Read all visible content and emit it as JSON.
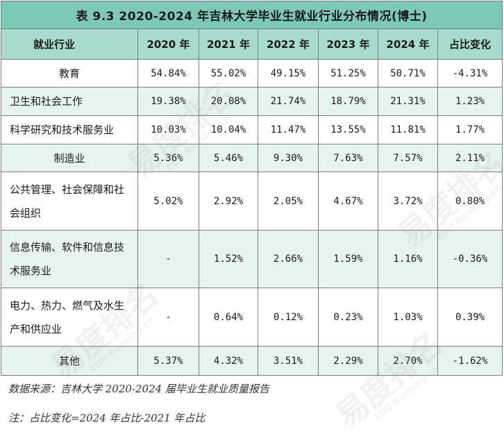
{
  "table": {
    "title": "表 9.3  2020-2024 年吉林大学毕业生就业行业分布情况(博士)",
    "columns": [
      "就业行业",
      "2020 年",
      "2021 年",
      "2022 年",
      "2023 年",
      "2024 年",
      "占比变化"
    ],
    "rows": [
      {
        "industry": "教育",
        "values": [
          "54.84%",
          "55.02%",
          "49.15%",
          "51.25%",
          "50.71%",
          "-4.31%"
        ]
      },
      {
        "industry": "卫生和社会工作",
        "values": [
          "19.38%",
          "20.08%",
          "21.74%",
          "18.79%",
          "21.31%",
          "1.23%"
        ]
      },
      {
        "industry": "科学研究和技术服务业",
        "values": [
          "10.03%",
          "10.04%",
          "11.47%",
          "13.55%",
          "11.81%",
          "1.77%"
        ]
      },
      {
        "industry": "制造业",
        "values": [
          "5.36%",
          "5.46%",
          "9.30%",
          "7.63%",
          "7.57%",
          "2.11%"
        ]
      },
      {
        "industry": "公共管理、社会保障和社会组织",
        "values": [
          "5.02%",
          "2.92%",
          "2.05%",
          "4.67%",
          "3.72%",
          "0.80%"
        ]
      },
      {
        "industry": "信息传输、软件和信息技术服务业",
        "values": [
          "-",
          "1.52%",
          "2.66%",
          "1.59%",
          "1.16%",
          "-0.36%"
        ]
      },
      {
        "industry": "电力、热力、燃气及水生产和供应业",
        "values": [
          "-",
          "0.64%",
          "0.12%",
          "0.23%",
          "1.03%",
          "0.39%"
        ]
      },
      {
        "industry": "其他",
        "values": [
          "5.37%",
          "4.32%",
          "3.51%",
          "2.29%",
          "2.70%",
          "-1.62%"
        ]
      }
    ]
  },
  "notes": {
    "source": "数据来源：吉林大学 2020-2024 届毕业生就业质量报告",
    "note": "注：占比变化=2024 年占比-2021 年占比"
  },
  "watermark": {
    "text": "易度排名",
    "subtext": "EDU Ranking.cn"
  },
  "colors": {
    "title_bg": "#7cc9b7",
    "header_bg": "#a7dccc",
    "stripe_bg": "#e6f4ef"
  }
}
